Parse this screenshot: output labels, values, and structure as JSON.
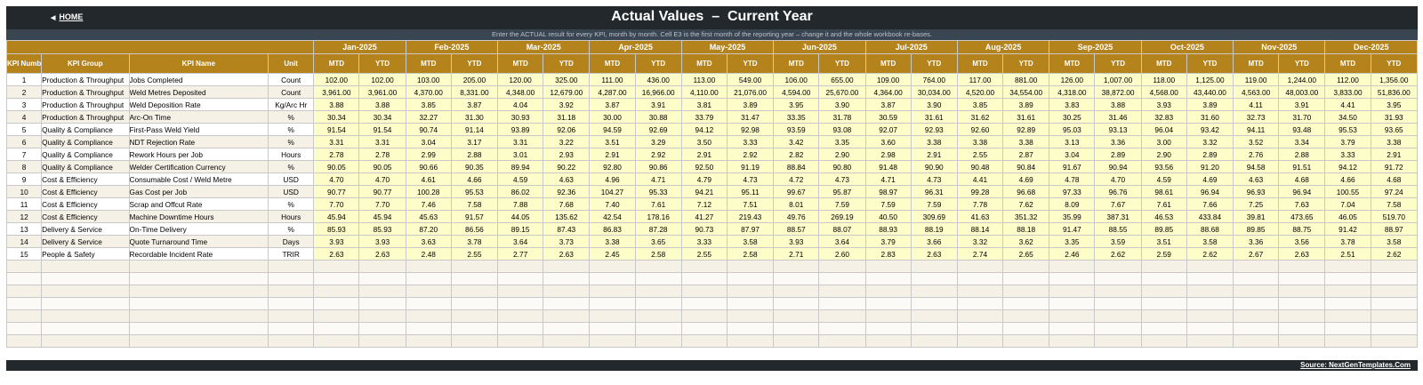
{
  "header": {
    "home_label": "HOME",
    "home_icon": "triangle-left-icon",
    "title": "Actual Values  –  Current Year",
    "subtitle": "Enter the ACTUAL result for every KPI, month by month. Cell E3 is the first month of the reporting year – change it and the whole workbook re-bases."
  },
  "columns": {
    "kpi_number": "KPI Number",
    "kpi_group": "KPI Group",
    "kpi_name": "KPI Name",
    "unit": "Unit",
    "mtd": "MTD",
    "ytd": "YTD"
  },
  "months": [
    "Jan-2025",
    "Feb-2025",
    "Mar-2025",
    "Apr-2025",
    "May-2025",
    "Jun-2025",
    "Jul-2025",
    "Aug-2025",
    "Sep-2025",
    "Oct-2025",
    "Nov-2025",
    "Dec-2025"
  ],
  "rows": [
    {
      "num": "1",
      "group": "Production & Throughput",
      "name": "Jobs Completed",
      "unit": "Count",
      "values": [
        "102.00",
        "102.00",
        "103.00",
        "205.00",
        "120.00",
        "325.00",
        "111.00",
        "436.00",
        "113.00",
        "549.00",
        "106.00",
        "655.00",
        "109.00",
        "764.00",
        "117.00",
        "881.00",
        "126.00",
        "1,007.00",
        "118.00",
        "1,125.00",
        "119.00",
        "1,244.00",
        "112.00",
        "1,356.00"
      ]
    },
    {
      "num": "2",
      "group": "Production & Throughput",
      "name": "Weld Metres Deposited",
      "unit": "Count",
      "values": [
        "3,961.00",
        "3,961.00",
        "4,370.00",
        "8,331.00",
        "4,348.00",
        "12,679.00",
        "4,287.00",
        "16,966.00",
        "4,110.00",
        "21,076.00",
        "4,594.00",
        "25,670.00",
        "4,364.00",
        "30,034.00",
        "4,520.00",
        "34,554.00",
        "4,318.00",
        "38,872.00",
        "4,568.00",
        "43,440.00",
        "4,563.00",
        "48,003.00",
        "3,833.00",
        "51,836.00"
      ]
    },
    {
      "num": "3",
      "group": "Production & Throughput",
      "name": "Weld Deposition Rate",
      "unit": "Kg/Arc Hr",
      "values": [
        "3.88",
        "3.88",
        "3.85",
        "3.87",
        "4.04",
        "3.92",
        "3.87",
        "3.91",
        "3.81",
        "3.89",
        "3.95",
        "3.90",
        "3.87",
        "3.90",
        "3.85",
        "3.89",
        "3.83",
        "3.88",
        "3.93",
        "3.89",
        "4.11",
        "3.91",
        "4.41",
        "3.95"
      ]
    },
    {
      "num": "4",
      "group": "Production & Throughput",
      "name": "Arc-On Time",
      "unit": "%",
      "values": [
        "30.34",
        "30.34",
        "32.27",
        "31.30",
        "30.93",
        "31.18",
        "30.00",
        "30.88",
        "33.79",
        "31.47",
        "33.35",
        "31.78",
        "30.59",
        "31.61",
        "31.62",
        "31.61",
        "30.25",
        "31.46",
        "32.83",
        "31.60",
        "32.73",
        "31.70",
        "34.50",
        "31.93"
      ]
    },
    {
      "num": "5",
      "group": "Quality & Compliance",
      "name": "First-Pass Weld Yield",
      "unit": "%",
      "values": [
        "91.54",
        "91.54",
        "90.74",
        "91.14",
        "93.89",
        "92.06",
        "94.59",
        "92.69",
        "94.12",
        "92.98",
        "93.59",
        "93.08",
        "92.07",
        "92.93",
        "92.60",
        "92.89",
        "95.03",
        "93.13",
        "96.04",
        "93.42",
        "94.11",
        "93.48",
        "95.53",
        "93.65"
      ]
    },
    {
      "num": "6",
      "group": "Quality & Compliance",
      "name": "NDT Rejection Rate",
      "unit": "%",
      "values": [
        "3.31",
        "3.31",
        "3.04",
        "3.17",
        "3.31",
        "3.22",
        "3.51",
        "3.29",
        "3.50",
        "3.33",
        "3.42",
        "3.35",
        "3.60",
        "3.38",
        "3.38",
        "3.38",
        "3.13",
        "3.36",
        "3.00",
        "3.32",
        "3.52",
        "3.34",
        "3.79",
        "3.38"
      ]
    },
    {
      "num": "7",
      "group": "Quality & Compliance",
      "name": "Rework Hours per Job",
      "unit": "Hours",
      "values": [
        "2.78",
        "2.78",
        "2.99",
        "2.88",
        "3.01",
        "2.93",
        "2.91",
        "2.92",
        "2.91",
        "2.92",
        "2.82",
        "2.90",
        "2.98",
        "2.91",
        "2.55",
        "2.87",
        "3.04",
        "2.89",
        "2.90",
        "2.89",
        "2.76",
        "2.88",
        "3.33",
        "2.91"
      ]
    },
    {
      "num": "8",
      "group": "Quality & Compliance",
      "name": "Welder Certification Currency",
      "unit": "%",
      "values": [
        "90.05",
        "90.05",
        "90.66",
        "90.35",
        "89.94",
        "90.22",
        "92.80",
        "90.86",
        "92.50",
        "91.19",
        "88.84",
        "90.80",
        "91.48",
        "90.90",
        "90.48",
        "90.84",
        "91.67",
        "90.94",
        "93.56",
        "91.20",
        "94.58",
        "91.51",
        "94.12",
        "91.72"
      ]
    },
    {
      "num": "9",
      "group": "Cost & Efficiency",
      "name": "Consumable Cost / Weld Metre",
      "unit": "USD",
      "values": [
        "4.70",
        "4.70",
        "4.61",
        "4.66",
        "4.59",
        "4.63",
        "4.96",
        "4.71",
        "4.79",
        "4.73",
        "4.72",
        "4.73",
        "4.71",
        "4.73",
        "4.41",
        "4.69",
        "4.78",
        "4.70",
        "4.59",
        "4.69",
        "4.63",
        "4.68",
        "4.66",
        "4.68"
      ]
    },
    {
      "num": "10",
      "group": "Cost & Efficiency",
      "name": "Gas Cost per Job",
      "unit": "USD",
      "values": [
        "90.77",
        "90.77",
        "100.28",
        "95.53",
        "86.02",
        "92.36",
        "104.27",
        "95.33",
        "94.21",
        "95.11",
        "99.67",
        "95.87",
        "98.97",
        "96.31",
        "99.28",
        "96.68",
        "97.33",
        "96.76",
        "98.61",
        "96.94",
        "96.93",
        "96.94",
        "100.55",
        "97.24"
      ]
    },
    {
      "num": "11",
      "group": "Cost & Efficiency",
      "name": "Scrap and Offcut Rate",
      "unit": "%",
      "values": [
        "7.70",
        "7.70",
        "7.46",
        "7.58",
        "7.88",
        "7.68",
        "7.40",
        "7.61",
        "7.12",
        "7.51",
        "8.01",
        "7.59",
        "7.59",
        "7.59",
        "7.78",
        "7.62",
        "8.09",
        "7.67",
        "7.61",
        "7.66",
        "7.25",
        "7.63",
        "7.04",
        "7.58"
      ]
    },
    {
      "num": "12",
      "group": "Cost & Efficiency",
      "name": "Machine Downtime Hours",
      "unit": "Hours",
      "values": [
        "45.94",
        "45.94",
        "45.63",
        "91.57",
        "44.05",
        "135.62",
        "42.54",
        "178.16",
        "41.27",
        "219.43",
        "49.76",
        "269.19",
        "40.50",
        "309.69",
        "41.63",
        "351.32",
        "35.99",
        "387.31",
        "46.53",
        "433.84",
        "39.81",
        "473.65",
        "46.05",
        "519.70"
      ]
    },
    {
      "num": "13",
      "group": "Delivery & Service",
      "name": "On-Time Delivery",
      "unit": "%",
      "values": [
        "85.93",
        "85.93",
        "87.20",
        "86.56",
        "89.15",
        "87.43",
        "86.83",
        "87.28",
        "90.73",
        "87.97",
        "88.57",
        "88.07",
        "88.93",
        "88.19",
        "88.14",
        "88.18",
        "91.47",
        "88.55",
        "89.85",
        "88.68",
        "89.85",
        "88.75",
        "91.42",
        "88.97"
      ]
    },
    {
      "num": "14",
      "group": "Delivery & Service",
      "name": "Quote Turnaround Time",
      "unit": "Days",
      "values": [
        "3.93",
        "3.93",
        "3.63",
        "3.78",
        "3.64",
        "3.73",
        "3.38",
        "3.65",
        "3.33",
        "3.58",
        "3.93",
        "3.64",
        "3.79",
        "3.66",
        "3.32",
        "3.62",
        "3.35",
        "3.59",
        "3.51",
        "3.58",
        "3.36",
        "3.56",
        "3.78",
        "3.58"
      ]
    },
    {
      "num": "15",
      "group": "People & Safety",
      "name": "Recordable Incident Rate",
      "unit": "TRIR",
      "values": [
        "2.63",
        "2.63",
        "2.48",
        "2.55",
        "2.77",
        "2.63",
        "2.45",
        "2.58",
        "2.55",
        "2.58",
        "2.71",
        "2.60",
        "2.83",
        "2.63",
        "2.74",
        "2.65",
        "2.46",
        "2.62",
        "2.59",
        "2.62",
        "2.67",
        "2.63",
        "2.51",
        "2.62"
      ]
    }
  ],
  "footer": {
    "source": "Source: NextGenTemplates.Com"
  },
  "colors": {
    "header_bg": "#23282d",
    "subbar_bg": "#3a4552",
    "column_header_bg": "#b5831c",
    "value_cell_bg": "#fdfdc9",
    "alt_row_bg": "#f6f1e7"
  }
}
